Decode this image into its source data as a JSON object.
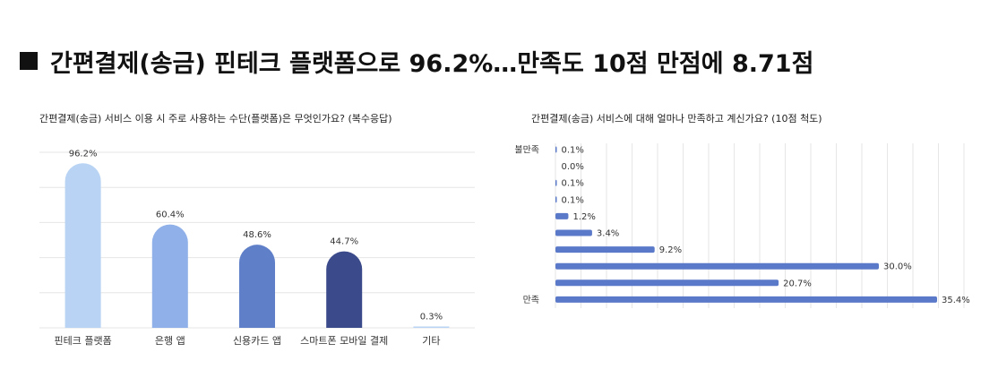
{
  "headline": "간편결제(송금) 핀테크 플랫폼으로 96.2%…만족도 10점 만점에 8.71점",
  "colors": {
    "bar_light": "#b8d3f3",
    "bar_mid": "#8fb0e8",
    "bar_blue": "#5f7fc8",
    "bar_dark": "#3b4a8a",
    "bar_h": "#5b79c9",
    "grid": "#e6e6e6"
  },
  "chart_data": [
    {
      "type": "bar",
      "title": "간편결제(송금) 서비스 이용 시 주로 사용하는 수단(플랫폼)은 무엇인가요? (복수응답)",
      "categories": [
        "핀테크 플랫폼",
        "은행 앱",
        "신용카드 앱",
        "스마트폰 모바일 결제",
        "기타"
      ],
      "values": [
        96.2,
        60.4,
        48.6,
        44.7,
        0.3
      ],
      "value_labels": [
        "96.2%",
        "60.4%",
        "48.6%",
        "44.7%",
        "0.3%"
      ],
      "ylim": [
        0,
        100
      ],
      "grid": true
    },
    {
      "type": "bar",
      "orientation": "horizontal",
      "title": "간편결제(송금) 서비스에 대해 얼마나 만족하고 계신가요? (10점 척도)",
      "categories": [
        "불만족",
        "",
        "",
        "",
        "",
        "",
        "",
        "",
        "",
        "만족"
      ],
      "values": [
        0.1,
        0.0,
        0.1,
        0.1,
        1.2,
        3.4,
        9.2,
        30.0,
        20.7,
        35.4
      ],
      "value_labels": [
        "0.1%",
        "0.0%",
        "0.1%",
        "0.1%",
        "1.2%",
        "3.4%",
        "9.2%",
        "30.0%",
        "20.7%",
        "35.4%"
      ],
      "xlim": [
        0,
        35.4
      ],
      "grid": true
    }
  ]
}
